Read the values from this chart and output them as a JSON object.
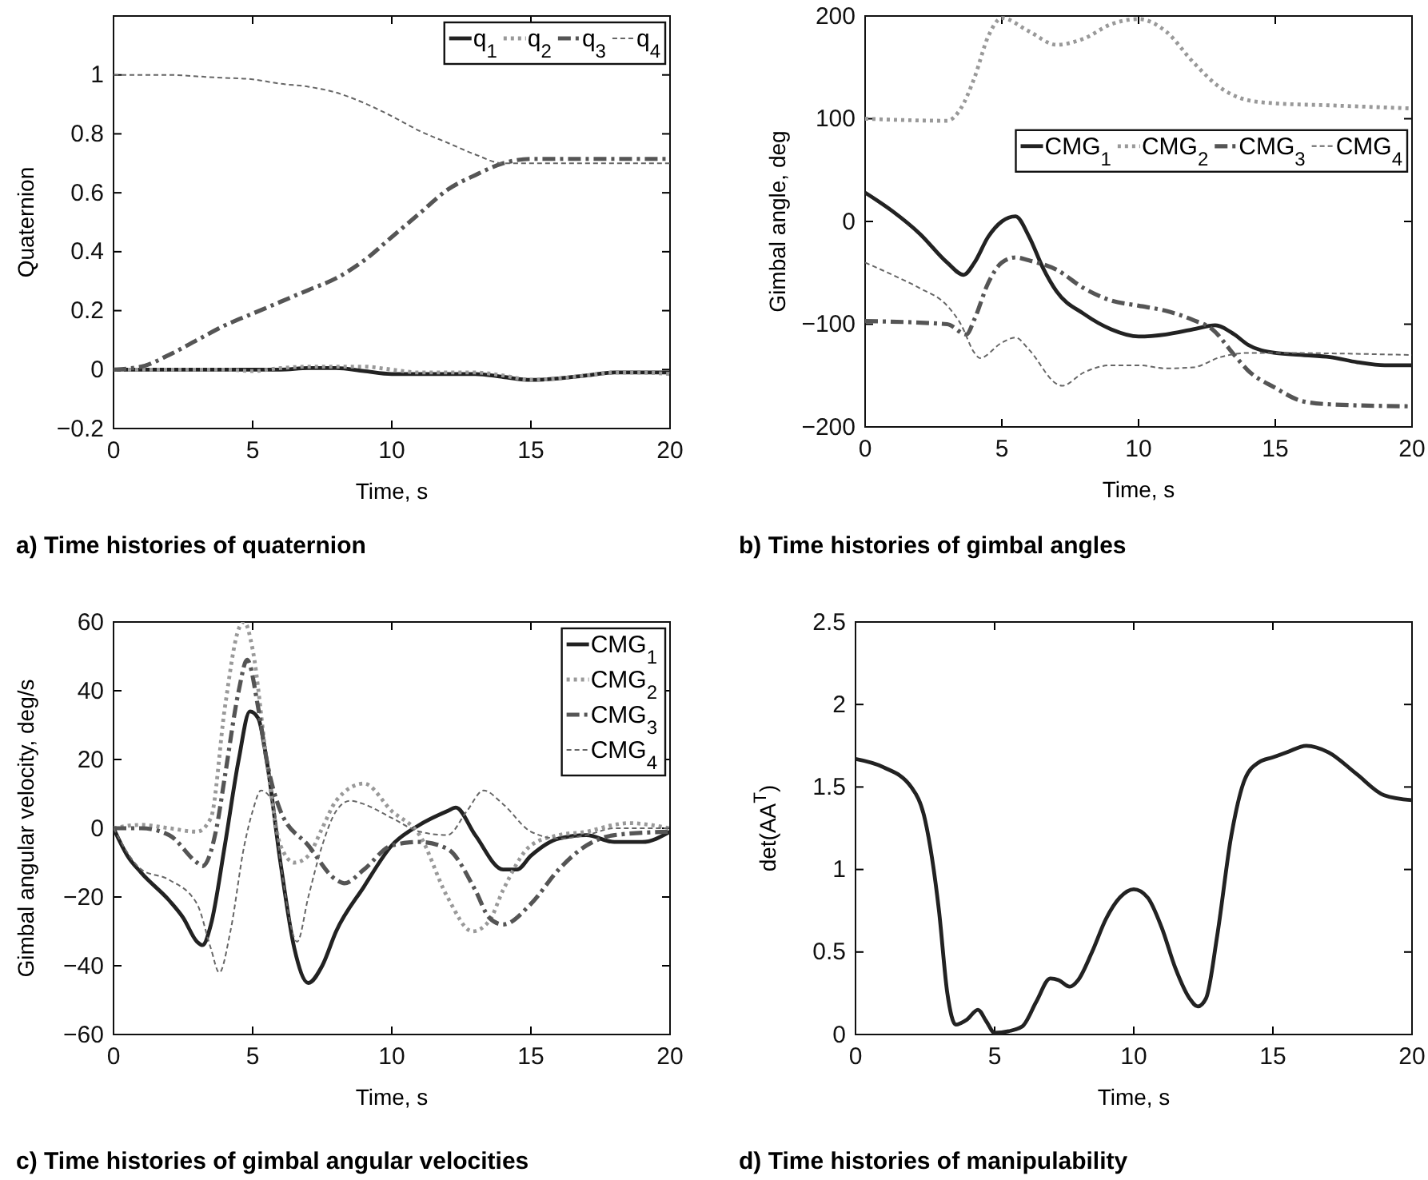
{
  "chart_data": [
    {
      "type": "line",
      "title": "a) Time histories of quaternion",
      "xlabel": "Time, s",
      "ylabel": "Quaternion",
      "xlim": [
        0,
        20
      ],
      "xticks": [
        0,
        5,
        10,
        15,
        20
      ],
      "ylim": [
        -0.2,
        1.2
      ],
      "yticks": [
        -0.2,
        0,
        0.2,
        0.4,
        0.6,
        0.8,
        1
      ],
      "grid": false,
      "legend": "top right",
      "x": [
        0,
        1,
        2,
        3,
        4,
        5,
        6,
        7,
        8,
        9,
        10,
        11,
        12,
        13,
        14,
        15,
        16,
        17,
        18,
        19,
        20
      ],
      "series": [
        {
          "name": "q$_{1}$",
          "color": "#222222",
          "line_style": "solid",
          "values": [
            0,
            0,
            0,
            0,
            0,
            0,
            0,
            0.005,
            0.005,
            -0.005,
            -0.015,
            -0.015,
            -0.015,
            -0.015,
            -0.025,
            -0.035,
            -0.03,
            -0.02,
            -0.01,
            -0.01,
            -0.01
          ]
        },
        {
          "name": "q$_{2}$",
          "color": "#999999",
          "line_style": "dotted",
          "values": [
            0,
            0,
            0,
            0,
            0,
            -0.005,
            0.005,
            0.01,
            0.01,
            0.01,
            0,
            -0.01,
            -0.01,
            -0.01,
            -0.02,
            -0.035,
            -0.03,
            -0.02,
            -0.01,
            -0.01,
            -0.015
          ]
        },
        {
          "name": "q$_{3}$",
          "color": "#555555",
          "line_style": "dashdot",
          "values": [
            0,
            0.01,
            0.05,
            0.1,
            0.15,
            0.19,
            0.23,
            0.27,
            0.31,
            0.37,
            0.45,
            0.53,
            0.61,
            0.66,
            0.7,
            0.715,
            0.715,
            0.715,
            0.715,
            0.715,
            0.715
          ]
        },
        {
          "name": "q$_{4}$",
          "color": "#666666",
          "line_style": "dashed",
          "values": [
            1,
            1,
            1,
            0.995,
            0.99,
            0.985,
            0.97,
            0.96,
            0.94,
            0.905,
            0.86,
            0.81,
            0.77,
            0.73,
            0.7,
            0.7,
            0.7,
            0.7,
            0.7,
            0.7,
            0.7
          ]
        }
      ]
    },
    {
      "type": "line",
      "title": "b) Time histories of gimbal angles",
      "xlabel": "Time, s",
      "ylabel": "Gimbal angle, deg",
      "xlim": [
        0,
        20
      ],
      "xticks": [
        0,
        5,
        10,
        15,
        20
      ],
      "ylim": [
        -200,
        200
      ],
      "yticks": [
        -200,
        -100,
        0,
        100,
        200
      ],
      "grid": false,
      "legend": "right",
      "series": [
        {
          "name": "CMG$_{1}$",
          "color": "#222222",
          "line_style": "solid",
          "x": [
            0,
            1,
            2,
            3,
            3.6,
            4,
            4.5,
            5,
            5.5,
            6,
            6.5,
            7,
            8,
            9,
            10,
            11,
            12,
            12.8,
            13.5,
            14,
            15,
            16,
            17,
            18,
            19,
            20
          ],
          "values": [
            28,
            10,
            -12,
            -40,
            -52,
            -40,
            -15,
            0,
            5,
            -15,
            -45,
            -68,
            -90,
            -105,
            -112,
            -110,
            -105,
            -101,
            -110,
            -120,
            -128,
            -130,
            -132,
            -137,
            -140,
            -140
          ]
        },
        {
          "name": "CMG$_{2}$",
          "color": "#999999",
          "line_style": "dotted",
          "x": [
            0,
            3,
            3.5,
            4,
            4.5,
            5,
            6,
            7,
            8,
            9,
            10,
            11,
            12,
            13,
            14,
            15,
            17,
            20
          ],
          "values": [
            100,
            98,
            110,
            140,
            180,
            198,
            185,
            172,
            178,
            192,
            197,
            185,
            155,
            130,
            118,
            115,
            113,
            110
          ]
        },
        {
          "name": "CMG$_{3}$",
          "color": "#555555",
          "line_style": "dashdot",
          "x": [
            0,
            3,
            3.7,
            4,
            4.5,
            5,
            5.5,
            6,
            7,
            8,
            9,
            10,
            11,
            12,
            12.7,
            13.5,
            14,
            15,
            16,
            17,
            20
          ],
          "values": [
            -97,
            -100,
            -110,
            -95,
            -60,
            -40,
            -35,
            -38,
            -47,
            -65,
            -77,
            -82,
            -87,
            -96,
            -105,
            -130,
            -145,
            -162,
            -175,
            -178,
            -180
          ]
        },
        {
          "name": "CMG$_{4}$",
          "color": "#666666",
          "line_style": "dashed",
          "x": [
            0,
            1,
            2,
            3,
            3.5,
            4,
            4.2,
            5,
            5.5,
            6,
            7,
            7.2,
            8,
            9,
            10,
            11,
            12,
            13,
            14,
            15,
            20
          ],
          "values": [
            -40,
            -52,
            -65,
            -82,
            -100,
            -128,
            -133,
            -118,
            -113,
            -125,
            -158,
            -160,
            -147,
            -140,
            -140,
            -143,
            -142,
            -132,
            -128,
            -128,
            -130
          ]
        }
      ]
    },
    {
      "type": "line",
      "title": "c) Time histories of gimbal angular velocities",
      "xlabel": "Time, s",
      "ylabel": "Gimbal angular velocity, deg/s",
      "xlim": [
        0,
        20
      ],
      "xticks": [
        0,
        5,
        10,
        15,
        20
      ],
      "ylim": [
        -60,
        60
      ],
      "yticks": [
        -60,
        -40,
        -20,
        0,
        20,
        40,
        60
      ],
      "grid": false,
      "legend": "top right",
      "series": [
        {
          "name": "CMG$_{1}$",
          "color": "#222222",
          "line_style": "solid",
          "x": [
            0,
            0.5,
            1,
            2,
            2.5,
            3,
            3.2,
            3.5,
            4,
            4.5,
            4.9,
            5.2,
            5.5,
            6,
            6.5,
            7,
            7.5,
            8,
            9,
            10,
            11,
            12,
            12.3,
            13,
            14,
            14.5,
            15,
            16,
            17,
            18,
            19,
            20
          ],
          "values": [
            0,
            -8,
            -13,
            -21,
            -26,
            -33,
            -34,
            -28,
            -5,
            20,
            34,
            32,
            20,
            -10,
            -35,
            -45,
            -40,
            -30,
            -17,
            -5,
            1,
            5,
            6,
            -2,
            -12,
            -12,
            -8,
            -3,
            -2,
            -4,
            -4,
            -1
          ]
        },
        {
          "name": "CMG$_{2}$",
          "color": "#999999",
          "line_style": "dotted",
          "x": [
            0,
            1,
            2,
            3,
            3.5,
            4,
            4.5,
            4.7,
            5,
            5.5,
            6,
            6.5,
            7,
            7.5,
            8,
            9,
            10,
            11,
            12,
            12.9,
            13.5,
            14,
            15,
            16,
            17,
            18,
            18.5,
            20
          ],
          "values": [
            0,
            1,
            0,
            -1,
            3,
            35,
            58,
            60,
            52,
            20,
            -5,
            -10,
            -8,
            0,
            8,
            13,
            5,
            -2,
            -20,
            -30,
            -27,
            -18,
            -5,
            -2,
            -1,
            1,
            1.5,
            0
          ]
        },
        {
          "name": "CMG$_{3}$",
          "color": "#555555",
          "line_style": "dashdot",
          "x": [
            0,
            1,
            2,
            3,
            3.2,
            3.7,
            4,
            4.5,
            4.8,
            5.2,
            5.5,
            6,
            7,
            8,
            8.3,
            9,
            10,
            11,
            12,
            13,
            13.5,
            14,
            15,
            16,
            17,
            18,
            20
          ],
          "values": [
            0,
            0,
            -2,
            -10,
            -11,
            0,
            15,
            40,
            49,
            35,
            20,
            5,
            -5,
            -15,
            -16,
            -12,
            -5,
            -4,
            -6,
            -18,
            -26,
            -28,
            -22,
            -12,
            -5,
            -2,
            -1
          ]
        },
        {
          "name": "CMG$_{4}$",
          "color": "#666666",
          "line_style": "dashed",
          "x": [
            0,
            1,
            2,
            3,
            3.5,
            3.8,
            4.2,
            4.7,
            5,
            5.3,
            5.7,
            6,
            6.6,
            7,
            7.5,
            8,
            8.5,
            9,
            10,
            11,
            12,
            12.7,
            13.3,
            14,
            15,
            16,
            17,
            18,
            20
          ],
          "values": [
            0,
            -12,
            -15,
            -22,
            -35,
            -42,
            -30,
            -5,
            5,
            11,
            8,
            -10,
            -33,
            -20,
            -5,
            5,
            8,
            7,
            3,
            -1,
            -2,
            5,
            11,
            7,
            -1,
            -3,
            -2,
            0,
            0
          ]
        }
      ]
    },
    {
      "type": "line",
      "title": "d) Time histories of manipulability",
      "xlabel": "Time, s",
      "ylabel": "det(AA$^{T}$)",
      "xlim": [
        0,
        20
      ],
      "xticks": [
        0,
        5,
        10,
        15,
        20
      ],
      "ylim": [
        0,
        2.5
      ],
      "yticks": [
        0,
        0.5,
        1,
        1.5,
        2,
        2.5
      ],
      "grid": false,
      "legend": false,
      "x": [
        0,
        1,
        2,
        2.5,
        3,
        3.3,
        3.6,
        4,
        4.4,
        4.7,
        5,
        5.5,
        6,
        6.5,
        7,
        7.3,
        7.7,
        8,
        8.5,
        9,
        9.5,
        10,
        10.5,
        11,
        11.5,
        12,
        12.3,
        12.6,
        13,
        13.5,
        14,
        14.5,
        15,
        15.5,
        16.2,
        17,
        18,
        19,
        20
      ],
      "series": [
        {
          "color": "#222222",
          "line_style": "solid",
          "values": [
            1.67,
            1.62,
            1.5,
            1.3,
            0.75,
            0.25,
            0.06,
            0.09,
            0.15,
            0.08,
            0.01,
            0.02,
            0.05,
            0.2,
            0.34,
            0.33,
            0.29,
            0.33,
            0.5,
            0.7,
            0.83,
            0.88,
            0.83,
            0.65,
            0.4,
            0.22,
            0.17,
            0.22,
            0.6,
            1.2,
            1.55,
            1.65,
            1.68,
            1.71,
            1.75,
            1.71,
            1.58,
            1.45,
            1.42
          ]
        }
      ]
    }
  ]
}
